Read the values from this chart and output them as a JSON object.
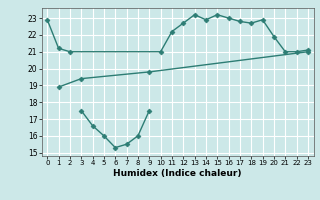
{
  "bg_color": "#cce8e8",
  "grid_color": "#ffffff",
  "line_color": "#2d7d74",
  "xlabel": "Humidex (Indice chaleur)",
  "xlim": [
    -0.5,
    23.5
  ],
  "ylim": [
    14.8,
    23.6
  ],
  "yticks": [
    15,
    16,
    17,
    18,
    19,
    20,
    21,
    22,
    23
  ],
  "xticks": [
    0,
    1,
    2,
    3,
    4,
    5,
    6,
    7,
    8,
    9,
    10,
    11,
    12,
    13,
    14,
    15,
    16,
    17,
    18,
    19,
    20,
    21,
    22,
    23
  ],
  "line1_x": [
    0,
    1,
    2,
    10,
    11,
    12,
    13,
    14,
    15,
    16,
    17,
    18,
    19,
    20,
    21,
    22,
    23
  ],
  "line1_y": [
    22.9,
    21.2,
    21.0,
    21.0,
    22.2,
    22.7,
    23.2,
    22.9,
    23.2,
    23.0,
    22.8,
    22.7,
    22.9,
    21.9,
    21.0,
    21.0,
    21.1
  ],
  "line2_x": [
    1,
    3,
    9,
    23
  ],
  "line2_y": [
    18.9,
    19.4,
    19.8,
    21.0
  ],
  "line3_x": [
    3,
    4,
    5,
    6,
    7,
    8,
    9
  ],
  "line3_y": [
    17.5,
    16.6,
    16.0,
    15.3,
    15.5,
    16.0,
    17.5
  ],
  "marker": "D",
  "markersize": 2.5,
  "linewidth": 1.0,
  "tick_fontsize": 5.5,
  "xlabel_fontsize": 6.5
}
